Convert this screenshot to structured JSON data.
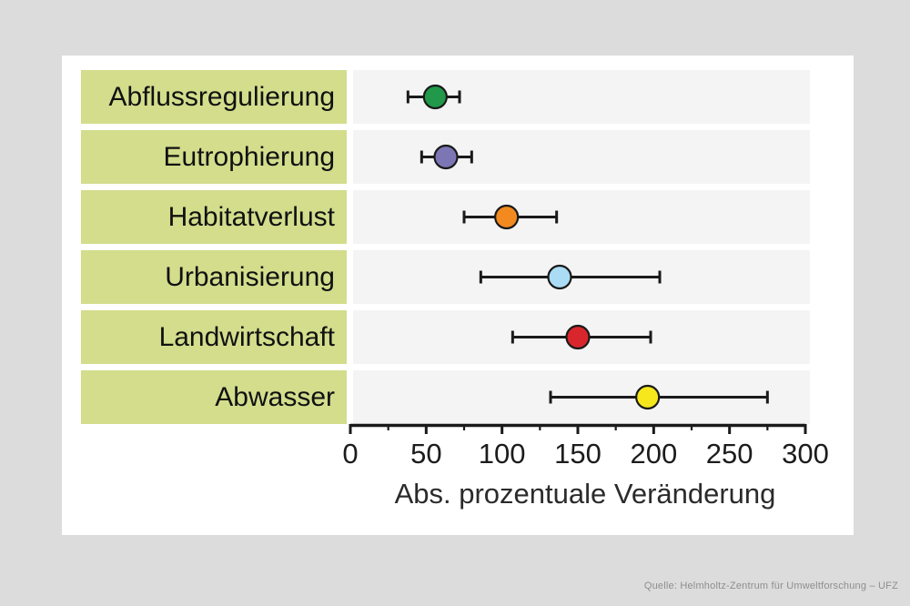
{
  "window": {
    "background_color": "#dcdcdc",
    "panel_color": "#ffffff"
  },
  "chart_data": {
    "type": "scatter",
    "subtype": "dot-plot-with-error-bars",
    "orientation": "horizontal",
    "title": "",
    "xlabel": "Abs. prozentuale Veränderung",
    "ylabel": "",
    "xlim": [
      0,
      300
    ],
    "x_major_ticks": [
      0,
      50,
      100,
      150,
      200,
      250,
      300
    ],
    "x_minor_ticks": [
      25,
      75,
      125,
      175,
      225,
      275
    ],
    "grid": false,
    "legend": false,
    "categories": [
      "Abflussregulierung",
      "Eutrophierung",
      "Habitatverlust",
      "Urbanisierung",
      "Landwirtschaft",
      "Abwasser"
    ],
    "series": [
      {
        "name": "Abs. prozentuale Veränderung",
        "values": [
          56,
          63,
          103,
          138,
          150,
          196
        ],
        "ci_low": [
          38,
          47,
          75,
          86,
          107,
          132
        ],
        "ci_high": [
          72,
          80,
          136,
          204,
          198,
          275
        ]
      }
    ],
    "point_colors": [
      "#21984a",
      "#7d76b5",
      "#f28a20",
      "#aadcf5",
      "#d8262c",
      "#f6e71d"
    ],
    "point_outline_color": "#1a1a1a",
    "errorbar_color": "#1a1a1a",
    "axis_color": "#1a1a1a",
    "category_box_color": "#d3dd8c",
    "row_band_color": "#f4f4f4"
  },
  "footer": {
    "source": "Quelle: Helmholtz-Zentrum für Umweltforschung – UFZ"
  }
}
